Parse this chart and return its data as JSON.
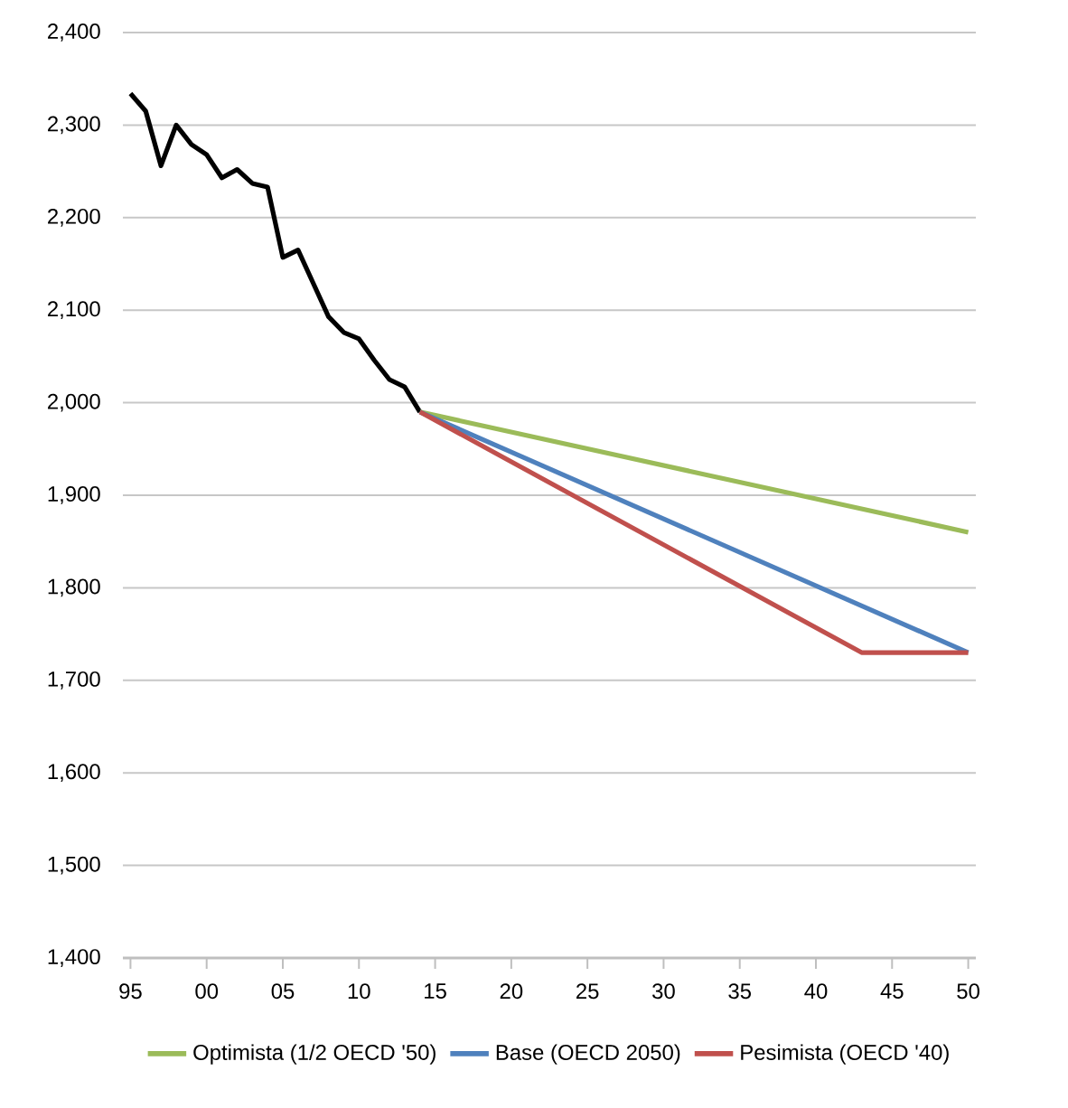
{
  "chart_data": {
    "type": "line",
    "series": [
      {
        "color": "#000000",
        "x": [
          1995,
          1996,
          1997,
          1998,
          1999,
          2000,
          2001,
          2002,
          2003,
          2004,
          2005,
          2006,
          2007,
          2008,
          2009,
          2010,
          2011,
          2012,
          2013,
          2014
        ],
        "values": [
          2334,
          2315,
          2256,
          2300,
          2279,
          2268,
          2243,
          2252,
          2237,
          2233,
          2157,
          2165,
          2129,
          2093,
          2076,
          2069,
          2046,
          2025,
          2017,
          1990
        ]
      },
      {
        "name": "Optimista (1/2 OECD '50)",
        "color": "#9bbb59",
        "x": [
          2014,
          2050
        ],
        "values": [
          1990,
          1860
        ]
      },
      {
        "name": "Base (OECD 2050)",
        "color": "#4f81bd",
        "x": [
          2014,
          2050
        ],
        "values": [
          1990,
          1730
        ]
      },
      {
        "name": "Pesimista (OECD '40)",
        "color": "#c0504d",
        "x": [
          2014,
          2043,
          2050
        ],
        "values": [
          1990,
          1730,
          1730
        ]
      }
    ],
    "xlim": [
      1994.5,
      2050.5
    ],
    "xticks": [
      {
        "value": 1995,
        "label": "95"
      },
      {
        "value": 2000,
        "label": "00"
      },
      {
        "value": 2005,
        "label": "05"
      },
      {
        "value": 2010,
        "label": "10"
      },
      {
        "value": 2015,
        "label": "15"
      },
      {
        "value": 2020,
        "label": "20"
      },
      {
        "value": 2025,
        "label": "25"
      },
      {
        "value": 2030,
        "label": "30"
      },
      {
        "value": 2035,
        "label": "35"
      },
      {
        "value": 2040,
        "label": "40"
      },
      {
        "value": 2045,
        "label": "45"
      },
      {
        "value": 2050,
        "label": "50"
      }
    ],
    "ylim": [
      1400,
      2400
    ],
    "yticks": [
      {
        "value": 1400,
        "label": "1,400"
      },
      {
        "value": 1500,
        "label": "1,500"
      },
      {
        "value": 1600,
        "label": "1,600"
      },
      {
        "value": 1700,
        "label": "1,700"
      },
      {
        "value": 1800,
        "label": "1,800"
      },
      {
        "value": 1900,
        "label": "1,900"
      },
      {
        "value": 2000,
        "label": "2,000"
      },
      {
        "value": 2100,
        "label": "2,100"
      },
      {
        "value": 2200,
        "label": "2,200"
      },
      {
        "value": 2300,
        "label": "2,300"
      },
      {
        "value": 2400,
        "label": "2,400"
      }
    ],
    "grid": "y",
    "legend": "bottom",
    "marker": "none",
    "line_style": "solid"
  }
}
